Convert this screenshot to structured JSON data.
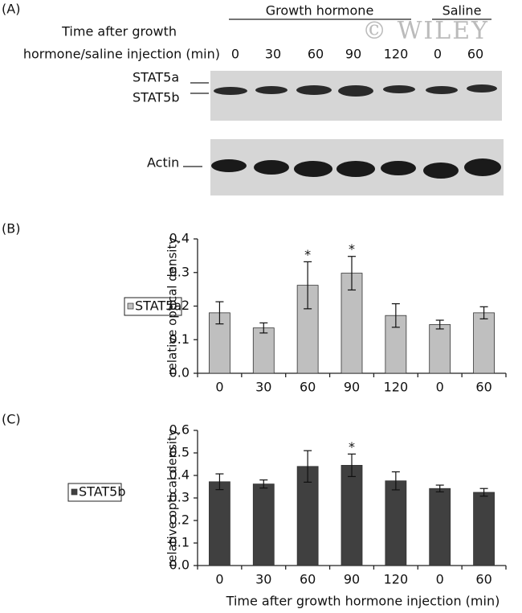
{
  "blot": {
    "panel": "(A)",
    "groups": [
      "Growth hormone",
      "Saline"
    ],
    "time_label": [
      "Time after growth",
      "hormone/saline injection (min)"
    ],
    "lanes": [
      "0",
      "30",
      "60",
      "90",
      "120",
      "0",
      "60"
    ],
    "bands": [
      "STAT5a",
      "STAT5b",
      "Actin"
    ],
    "watermark": "© WILEY"
  },
  "chart_data": [
    {
      "type": "bar",
      "panel": "(B)",
      "y_label": "relative optical density",
      "categories": [
        "0",
        "30",
        "60",
        "90",
        "120",
        "0",
        "60"
      ],
      "series": [
        {
          "name": "STAT5a",
          "color": "#bfbfbf",
          "values": [
            0.18,
            0.135,
            0.262,
            0.298,
            0.172,
            0.145,
            0.18
          ],
          "errors": [
            0.033,
            0.015,
            0.07,
            0.05,
            0.035,
            0.013,
            0.018
          ]
        }
      ],
      "significance": [
        null,
        null,
        "*",
        "*",
        null,
        null,
        null
      ],
      "ylim": [
        0,
        0.4
      ],
      "yticks": [
        {
          "value": 0,
          "label": "0.0"
        },
        0.1,
        0.2,
        0.3,
        0.4
      ],
      "legend": "left"
    },
    {
      "type": "bar",
      "panel": "(C)",
      "y_label": "relative optical density",
      "x_label": "Time after growth hormone injection (min)",
      "categories": [
        "0",
        "30",
        "60",
        "90",
        "120",
        "0",
        "60"
      ],
      "series": [
        {
          "name": "STAT5b",
          "color": "#404040",
          "values": [
            0.372,
            0.362,
            0.44,
            0.445,
            0.376,
            0.342,
            0.325
          ],
          "errors": [
            0.035,
            0.018,
            0.07,
            0.05,
            0.04,
            0.015,
            0.017
          ]
        }
      ],
      "significance": [
        null,
        null,
        null,
        "*",
        null,
        null,
        null
      ],
      "ylim": [
        0,
        0.6
      ],
      "yticks": [
        {
          "value": 0,
          "label": "0.0"
        },
        0.1,
        0.2,
        0.3,
        0.4,
        0.5,
        0.6
      ],
      "legend": "left"
    }
  ]
}
